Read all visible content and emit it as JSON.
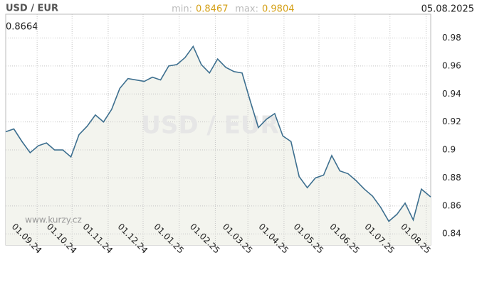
{
  "chart_data": {
    "type": "line",
    "title": "USD / EUR",
    "min_label": "min:",
    "min_value": 0.8467,
    "max_label": "max:",
    "max_value": 0.9804,
    "date": "05.08.2025",
    "last_value": 0.8664,
    "watermark": "USD / EUR",
    "source": "www.kurzy.cz",
    "x": [
      "05.08.24",
      "12.08.24",
      "19.08.24",
      "26.08.24",
      "02.09.24",
      "09.09.24",
      "16.09.24",
      "23.09.24",
      "30.09.24",
      "07.10.24",
      "14.10.24",
      "21.10.24",
      "28.10.24",
      "04.11.24",
      "11.11.24",
      "18.11.24",
      "25.11.24",
      "02.12.24",
      "09.12.24",
      "16.12.24",
      "23.12.24",
      "30.12.24",
      "06.01.25",
      "13.01.25",
      "20.01.25",
      "27.01.25",
      "03.02.25",
      "10.02.25",
      "17.02.25",
      "24.02.25",
      "03.03.25",
      "10.03.25",
      "17.03.25",
      "24.03.25",
      "31.03.25",
      "07.04.25",
      "14.04.25",
      "21.04.25",
      "28.04.25",
      "05.05.25",
      "12.05.25",
      "19.05.25",
      "26.05.25",
      "02.06.25",
      "09.06.25",
      "16.06.25",
      "23.06.25",
      "30.06.25",
      "07.07.25",
      "14.07.25",
      "21.07.25",
      "28.07.25",
      "05.08.25"
    ],
    "series": [
      {
        "name": "USD / EUR",
        "color": "#3d6f8f",
        "values": [
          0.913,
          0.915,
          0.906,
          0.898,
          0.903,
          0.905,
          0.9,
          0.9,
          0.895,
          0.911,
          0.917,
          0.925,
          0.92,
          0.929,
          0.944,
          0.951,
          0.95,
          0.949,
          0.952,
          0.95,
          0.96,
          0.961,
          0.966,
          0.974,
          0.961,
          0.955,
          0.965,
          0.959,
          0.956,
          0.955,
          0.935,
          0.916,
          0.922,
          0.926,
          0.91,
          0.906,
          0.881,
          0.873,
          0.88,
          0.882,
          0.896,
          0.885,
          0.883,
          0.878,
          0.872,
          0.867,
          0.859,
          0.849,
          0.854,
          0.862,
          0.85,
          0.872,
          0.8664
        ]
      }
    ],
    "xlim": [
      "05.08.24",
      "05.08.25"
    ],
    "xticks": [
      "01.09.24",
      "01.10.24",
      "01.11.24",
      "01.12.24",
      "01.01.25",
      "01.02.25",
      "01.03.25",
      "01.04.25",
      "01.05.25",
      "01.06.25",
      "01.07.25",
      "01.08.25"
    ],
    "ylim": [
      0.832,
      0.997
    ],
    "yticks": [
      0.84,
      0.86,
      0.88,
      0.9,
      0.92,
      0.94,
      0.96,
      0.98
    ],
    "grid": true,
    "area_color": "#f3f4ee"
  }
}
